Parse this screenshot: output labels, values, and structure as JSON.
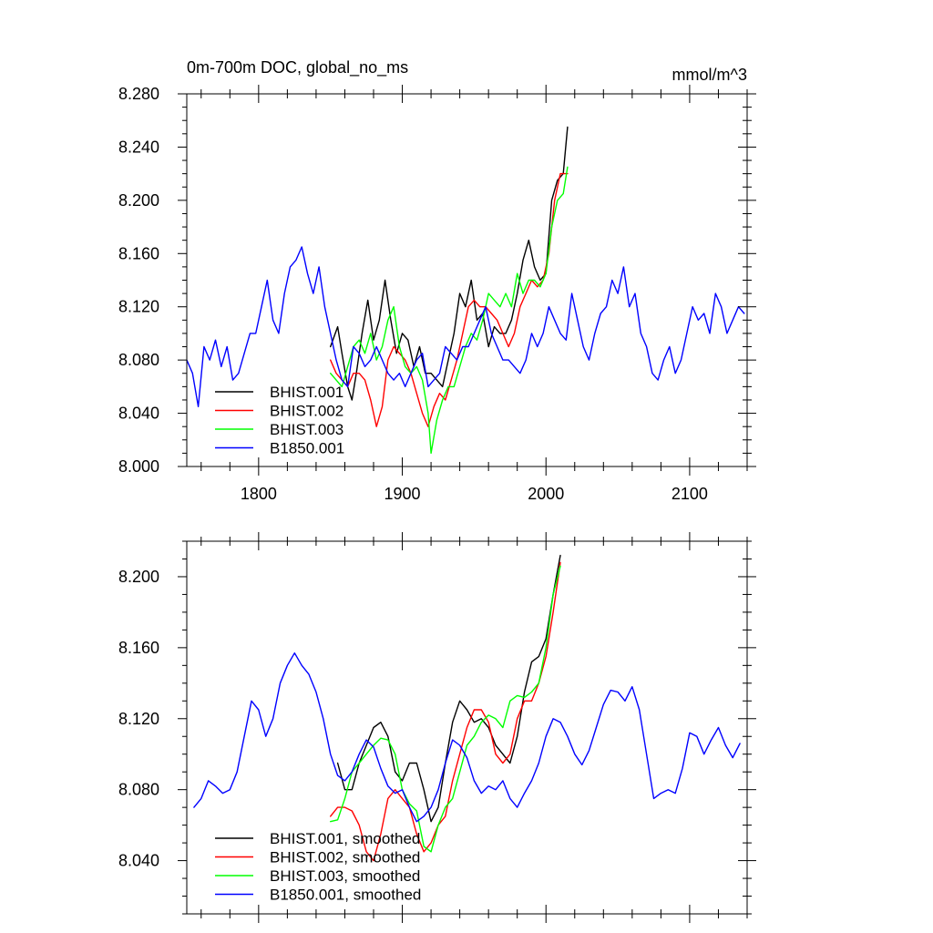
{
  "colors": {
    "black": "#000000",
    "red": "#ff0000",
    "green": "#00ff00",
    "blue": "#0000ff"
  },
  "chart_data": [
    {
      "type": "line",
      "title": "0m-700m DOC, global_no_ms",
      "unit_label": "mmol/m^3",
      "xlabel": "",
      "ylabel": "",
      "xlim": [
        1750,
        2140
      ],
      "ylim": [
        8.0,
        8.28
      ],
      "xticks": [
        1800,
        1900,
        2000,
        2100
      ],
      "xtick_labels": [
        "1800",
        "1900",
        "2000",
        "2100"
      ],
      "yticks": [
        8.0,
        8.04,
        8.08,
        8.12,
        8.16,
        8.2,
        8.24,
        8.28
      ],
      "ytick_labels": [
        "8.000",
        "8.040",
        "8.080",
        "8.120",
        "8.160",
        "8.200",
        "8.240",
        "8.280"
      ],
      "grid": false,
      "legend_position": "bottom-left",
      "series": [
        {
          "name": "BHIST.001",
          "color": "#000000",
          "x": [
            1850,
            1855,
            1858,
            1862,
            1865,
            1868,
            1872,
            1876,
            1880,
            1884,
            1888,
            1892,
            1896,
            1900,
            1904,
            1908,
            1912,
            1916,
            1920,
            1924,
            1928,
            1932,
            1936,
            1940,
            1944,
            1948,
            1952,
            1956,
            1960,
            1964,
            1968,
            1972,
            1976,
            1980,
            1984,
            1988,
            1992,
            1996,
            2000,
            2004,
            2008,
            2012,
            2015
          ],
          "y": [
            8.09,
            8.105,
            8.085,
            8.06,
            8.05,
            8.07,
            8.1,
            8.125,
            8.095,
            8.11,
            8.14,
            8.11,
            8.085,
            8.1,
            8.095,
            8.075,
            8.09,
            8.07,
            8.07,
            8.065,
            8.06,
            8.08,
            8.1,
            8.13,
            8.12,
            8.14,
            8.11,
            8.115,
            8.09,
            8.105,
            8.1,
            8.1,
            8.11,
            8.13,
            8.155,
            8.17,
            8.15,
            8.14,
            8.145,
            8.2,
            8.215,
            8.22,
            8.255
          ]
        },
        {
          "name": "BHIST.002",
          "color": "#ff0000",
          "x": [
            1850,
            1854,
            1858,
            1862,
            1866,
            1870,
            1874,
            1878,
            1882,
            1886,
            1890,
            1894,
            1898,
            1902,
            1906,
            1910,
            1914,
            1918,
            1922,
            1926,
            1930,
            1934,
            1938,
            1942,
            1946,
            1950,
            1954,
            1958,
            1962,
            1966,
            1970,
            1974,
            1978,
            1982,
            1986,
            1990,
            1994,
            1998,
            2002,
            2006,
            2010,
            2015
          ],
          "y": [
            8.08,
            8.07,
            8.065,
            8.06,
            8.07,
            8.07,
            8.065,
            8.05,
            8.03,
            8.045,
            8.08,
            8.09,
            8.085,
            8.08,
            8.07,
            8.055,
            8.04,
            8.03,
            8.045,
            8.055,
            8.05,
            8.065,
            8.08,
            8.1,
            8.12,
            8.125,
            8.12,
            8.12,
            8.115,
            8.11,
            8.1,
            8.09,
            8.1,
            8.12,
            8.13,
            8.14,
            8.135,
            8.14,
            8.16,
            8.2,
            8.22,
            8.22
          ]
        },
        {
          "name": "BHIST.003",
          "color": "#00ff00",
          "x": [
            1850,
            1854,
            1858,
            1862,
            1866,
            1870,
            1874,
            1878,
            1882,
            1886,
            1890,
            1894,
            1898,
            1902,
            1906,
            1910,
            1914,
            1918,
            1920,
            1924,
            1928,
            1932,
            1936,
            1940,
            1944,
            1948,
            1952,
            1956,
            1960,
            1964,
            1968,
            1972,
            1976,
            1980,
            1984,
            1988,
            1992,
            1996,
            2000,
            2004,
            2008,
            2012,
            2015
          ],
          "y": [
            8.07,
            8.065,
            8.06,
            8.075,
            8.09,
            8.095,
            8.085,
            8.1,
            8.08,
            8.09,
            8.11,
            8.12,
            8.09,
            8.075,
            8.07,
            8.075,
            8.065,
            8.04,
            8.01,
            8.035,
            8.05,
            8.06,
            8.06,
            8.075,
            8.09,
            8.1,
            8.095,
            8.11,
            8.13,
            8.125,
            8.12,
            8.13,
            8.12,
            8.145,
            8.13,
            8.14,
            8.14,
            8.135,
            8.145,
            8.18,
            8.2,
            8.205,
            8.225
          ]
        },
        {
          "name": "B1850.001",
          "color": "#0000ff",
          "x": [
            1750,
            1754,
            1758,
            1762,
            1766,
            1770,
            1774,
            1778,
            1782,
            1786,
            1790,
            1794,
            1798,
            1802,
            1806,
            1810,
            1814,
            1818,
            1822,
            1826,
            1830,
            1834,
            1838,
            1842,
            1846,
            1850,
            1854,
            1858,
            1862,
            1866,
            1870,
            1874,
            1878,
            1882,
            1886,
            1890,
            1894,
            1898,
            1902,
            1906,
            1910,
            1914,
            1918,
            1922,
            1926,
            1930,
            1934,
            1938,
            1942,
            1946,
            1950,
            1954,
            1958,
            1962,
            1966,
            1970,
            1974,
            1978,
            1982,
            1986,
            1990,
            1994,
            1998,
            2002,
            2006,
            2010,
            2014,
            2018,
            2022,
            2026,
            2030,
            2034,
            2038,
            2042,
            2046,
            2050,
            2054,
            2058,
            2062,
            2066,
            2070,
            2074,
            2078,
            2082,
            2086,
            2090,
            2094,
            2098,
            2102,
            2106,
            2110,
            2114,
            2118,
            2122,
            2126,
            2130,
            2134,
            2138
          ],
          "y": [
            8.08,
            8.07,
            8.045,
            8.09,
            8.08,
            8.095,
            8.075,
            8.09,
            8.065,
            8.07,
            8.085,
            8.1,
            8.1,
            8.12,
            8.14,
            8.11,
            8.1,
            8.13,
            8.15,
            8.155,
            8.165,
            8.145,
            8.13,
            8.15,
            8.12,
            8.1,
            8.08,
            8.065,
            8.06,
            8.09,
            8.085,
            8.075,
            8.08,
            8.09,
            8.08,
            8.07,
            8.065,
            8.07,
            8.06,
            8.07,
            8.08,
            8.085,
            8.06,
            8.065,
            8.07,
            8.09,
            8.085,
            8.08,
            8.09,
            8.09,
            8.1,
            8.11,
            8.12,
            8.1,
            8.09,
            8.08,
            8.08,
            8.075,
            8.07,
            8.08,
            8.1,
            8.09,
            8.1,
            8.12,
            8.11,
            8.1,
            8.095,
            8.13,
            8.11,
            8.09,
            8.08,
            8.1,
            8.115,
            8.12,
            8.14,
            8.13,
            8.15,
            8.12,
            8.13,
            8.1,
            8.09,
            8.07,
            8.065,
            8.08,
            8.09,
            8.07,
            8.08,
            8.1,
            8.12,
            8.11,
            8.115,
            8.1,
            8.13,
            8.12,
            8.1,
            8.11,
            8.12,
            8.115
          ]
        }
      ]
    },
    {
      "type": "line",
      "title": "",
      "xlabel": "",
      "ylabel": "",
      "xlim": [
        1750,
        2140
      ],
      "ylim": [
        8.01,
        8.22
      ],
      "xticks": [
        1800,
        1900,
        2000,
        2100
      ],
      "xtick_labels": [
        "",
        "",
        "",
        ""
      ],
      "yticks": [
        8.04,
        8.08,
        8.12,
        8.16,
        8.2
      ],
      "ytick_labels": [
        "8.040",
        "8.080",
        "8.120",
        "8.160",
        "8.200"
      ],
      "grid": false,
      "legend_position": "bottom-left",
      "series": [
        {
          "name": "BHIST.001, smoothed",
          "color": "#000000",
          "x": [
            1855,
            1860,
            1865,
            1870,
            1875,
            1880,
            1885,
            1890,
            1895,
            1900,
            1905,
            1910,
            1915,
            1920,
            1925,
            1930,
            1935,
            1940,
            1945,
            1950,
            1955,
            1960,
            1965,
            1970,
            1975,
            1980,
            1985,
            1990,
            1995,
            2000,
            2005,
            2010
          ],
          "y": [
            8.095,
            8.08,
            8.08,
            8.095,
            8.105,
            8.115,
            8.118,
            8.11,
            8.09,
            8.085,
            8.095,
            8.095,
            8.08,
            8.062,
            8.07,
            8.095,
            8.118,
            8.13,
            8.125,
            8.118,
            8.12,
            8.115,
            8.105,
            8.1,
            8.095,
            8.11,
            8.135,
            8.152,
            8.155,
            8.165,
            8.19,
            8.212
          ]
        },
        {
          "name": "BHIST.002, smoothed",
          "color": "#ff0000",
          "x": [
            1850,
            1855,
            1860,
            1865,
            1870,
            1875,
            1880,
            1885,
            1890,
            1895,
            1900,
            1905,
            1910,
            1915,
            1920,
            1925,
            1930,
            1935,
            1940,
            1945,
            1950,
            1955,
            1960,
            1965,
            1970,
            1975,
            1980,
            1985,
            1990,
            1995,
            2000,
            2005,
            2010
          ],
          "y": [
            8.065,
            8.07,
            8.07,
            8.068,
            8.06,
            8.045,
            8.04,
            8.055,
            8.075,
            8.08,
            8.075,
            8.07,
            8.055,
            8.045,
            8.05,
            8.06,
            8.065,
            8.085,
            8.1,
            8.115,
            8.125,
            8.125,
            8.118,
            8.1,
            8.095,
            8.1,
            8.12,
            8.13,
            8.13,
            8.14,
            8.155,
            8.18,
            8.208
          ]
        },
        {
          "name": "BHIST.003, smoothed",
          "color": "#00ff00",
          "x": [
            1850,
            1855,
            1860,
            1865,
            1870,
            1875,
            1880,
            1885,
            1890,
            1895,
            1900,
            1905,
            1910,
            1915,
            1920,
            1925,
            1930,
            1935,
            1940,
            1945,
            1950,
            1955,
            1960,
            1965,
            1970,
            1975,
            1980,
            1985,
            1990,
            1995,
            2000,
            2005,
            2010
          ],
          "y": [
            8.062,
            8.063,
            8.075,
            8.09,
            8.095,
            8.1,
            8.105,
            8.109,
            8.108,
            8.1,
            8.08,
            8.072,
            8.068,
            8.048,
            8.045,
            8.06,
            8.07,
            8.075,
            8.09,
            8.105,
            8.11,
            8.118,
            8.122,
            8.12,
            8.115,
            8.13,
            8.133,
            8.132,
            8.135,
            8.14,
            8.16,
            8.19,
            8.206
          ]
        },
        {
          "name": "B1850.001, smoothed",
          "color": "#0000ff",
          "x": [
            1755,
            1760,
            1765,
            1770,
            1775,
            1780,
            1785,
            1790,
            1795,
            1800,
            1805,
            1810,
            1815,
            1820,
            1825,
            1830,
            1835,
            1840,
            1845,
            1850,
            1855,
            1860,
            1865,
            1870,
            1875,
            1880,
            1885,
            1890,
            1895,
            1900,
            1905,
            1910,
            1915,
            1920,
            1925,
            1930,
            1935,
            1940,
            1945,
            1950,
            1955,
            1960,
            1965,
            1970,
            1975,
            1980,
            1985,
            1990,
            1995,
            2000,
            2005,
            2010,
            2015,
            2020,
            2025,
            2030,
            2035,
            2040,
            2045,
            2050,
            2055,
            2060,
            2065,
            2070,
            2075,
            2080,
            2085,
            2090,
            2095,
            2100,
            2105,
            2110,
            2115,
            2120,
            2125,
            2130,
            2135
          ],
          "y": [
            8.07,
            8.075,
            8.085,
            8.082,
            8.078,
            8.08,
            8.09,
            8.11,
            8.13,
            8.125,
            8.11,
            8.12,
            8.14,
            8.15,
            8.157,
            8.15,
            8.145,
            8.135,
            8.12,
            8.1,
            8.088,
            8.085,
            8.09,
            8.1,
            8.108,
            8.104,
            8.092,
            8.082,
            8.078,
            8.08,
            8.07,
            8.062,
            8.065,
            8.07,
            8.08,
            8.095,
            8.108,
            8.105,
            8.098,
            8.085,
            8.078,
            8.082,
            8.08,
            8.085,
            8.075,
            8.07,
            8.078,
            8.085,
            8.095,
            8.11,
            8.12,
            8.118,
            8.11,
            8.1,
            8.094,
            8.102,
            8.115,
            8.128,
            8.136,
            8.135,
            8.13,
            8.138,
            8.125,
            8.1,
            8.075,
            8.078,
            8.08,
            8.078,
            8.092,
            8.112,
            8.11,
            8.1,
            8.108,
            8.115,
            8.105,
            8.098,
            8.106
          ]
        }
      ]
    }
  ]
}
